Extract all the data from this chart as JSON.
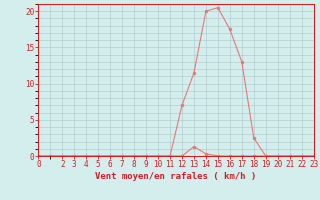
{
  "x": [
    0,
    1,
    2,
    3,
    4,
    5,
    6,
    7,
    8,
    9,
    10,
    11,
    12,
    13,
    14,
    15,
    16,
    17,
    18,
    19,
    20,
    21,
    22,
    23
  ],
  "y_main": [
    0,
    0,
    0,
    0,
    0,
    0,
    0,
    0,
    0,
    0,
    0,
    0,
    7,
    11.5,
    20,
    20.5,
    17.5,
    13,
    2.5,
    0,
    0,
    0,
    0,
    0
  ],
  "y_small": [
    0,
    0,
    0,
    0,
    0,
    0,
    0,
    0,
    0,
    0,
    0,
    0,
    0,
    1.3,
    0.3,
    0,
    0,
    0,
    0,
    0,
    0,
    0,
    0,
    0
  ],
  "line_color": "#e87878",
  "marker_color": "#e87878",
  "bg_color": "#d4eeee",
  "grid_color": "#aac8c8",
  "axis_color": "#cc2222",
  "spine_color": "#888888",
  "xlabel": "Vent moyen/en rafales ( km/h )",
  "xlim": [
    0,
    23
  ],
  "ylim": [
    0,
    21
  ],
  "yticks": [
    0,
    5,
    10,
    15,
    20
  ],
  "xticks": [
    0,
    2,
    3,
    4,
    5,
    6,
    7,
    8,
    9,
    10,
    11,
    12,
    13,
    14,
    15,
    16,
    17,
    18,
    19,
    20,
    21,
    22,
    23
  ],
  "xlabel_fontsize": 6.5,
  "tick_fontsize": 5.5
}
